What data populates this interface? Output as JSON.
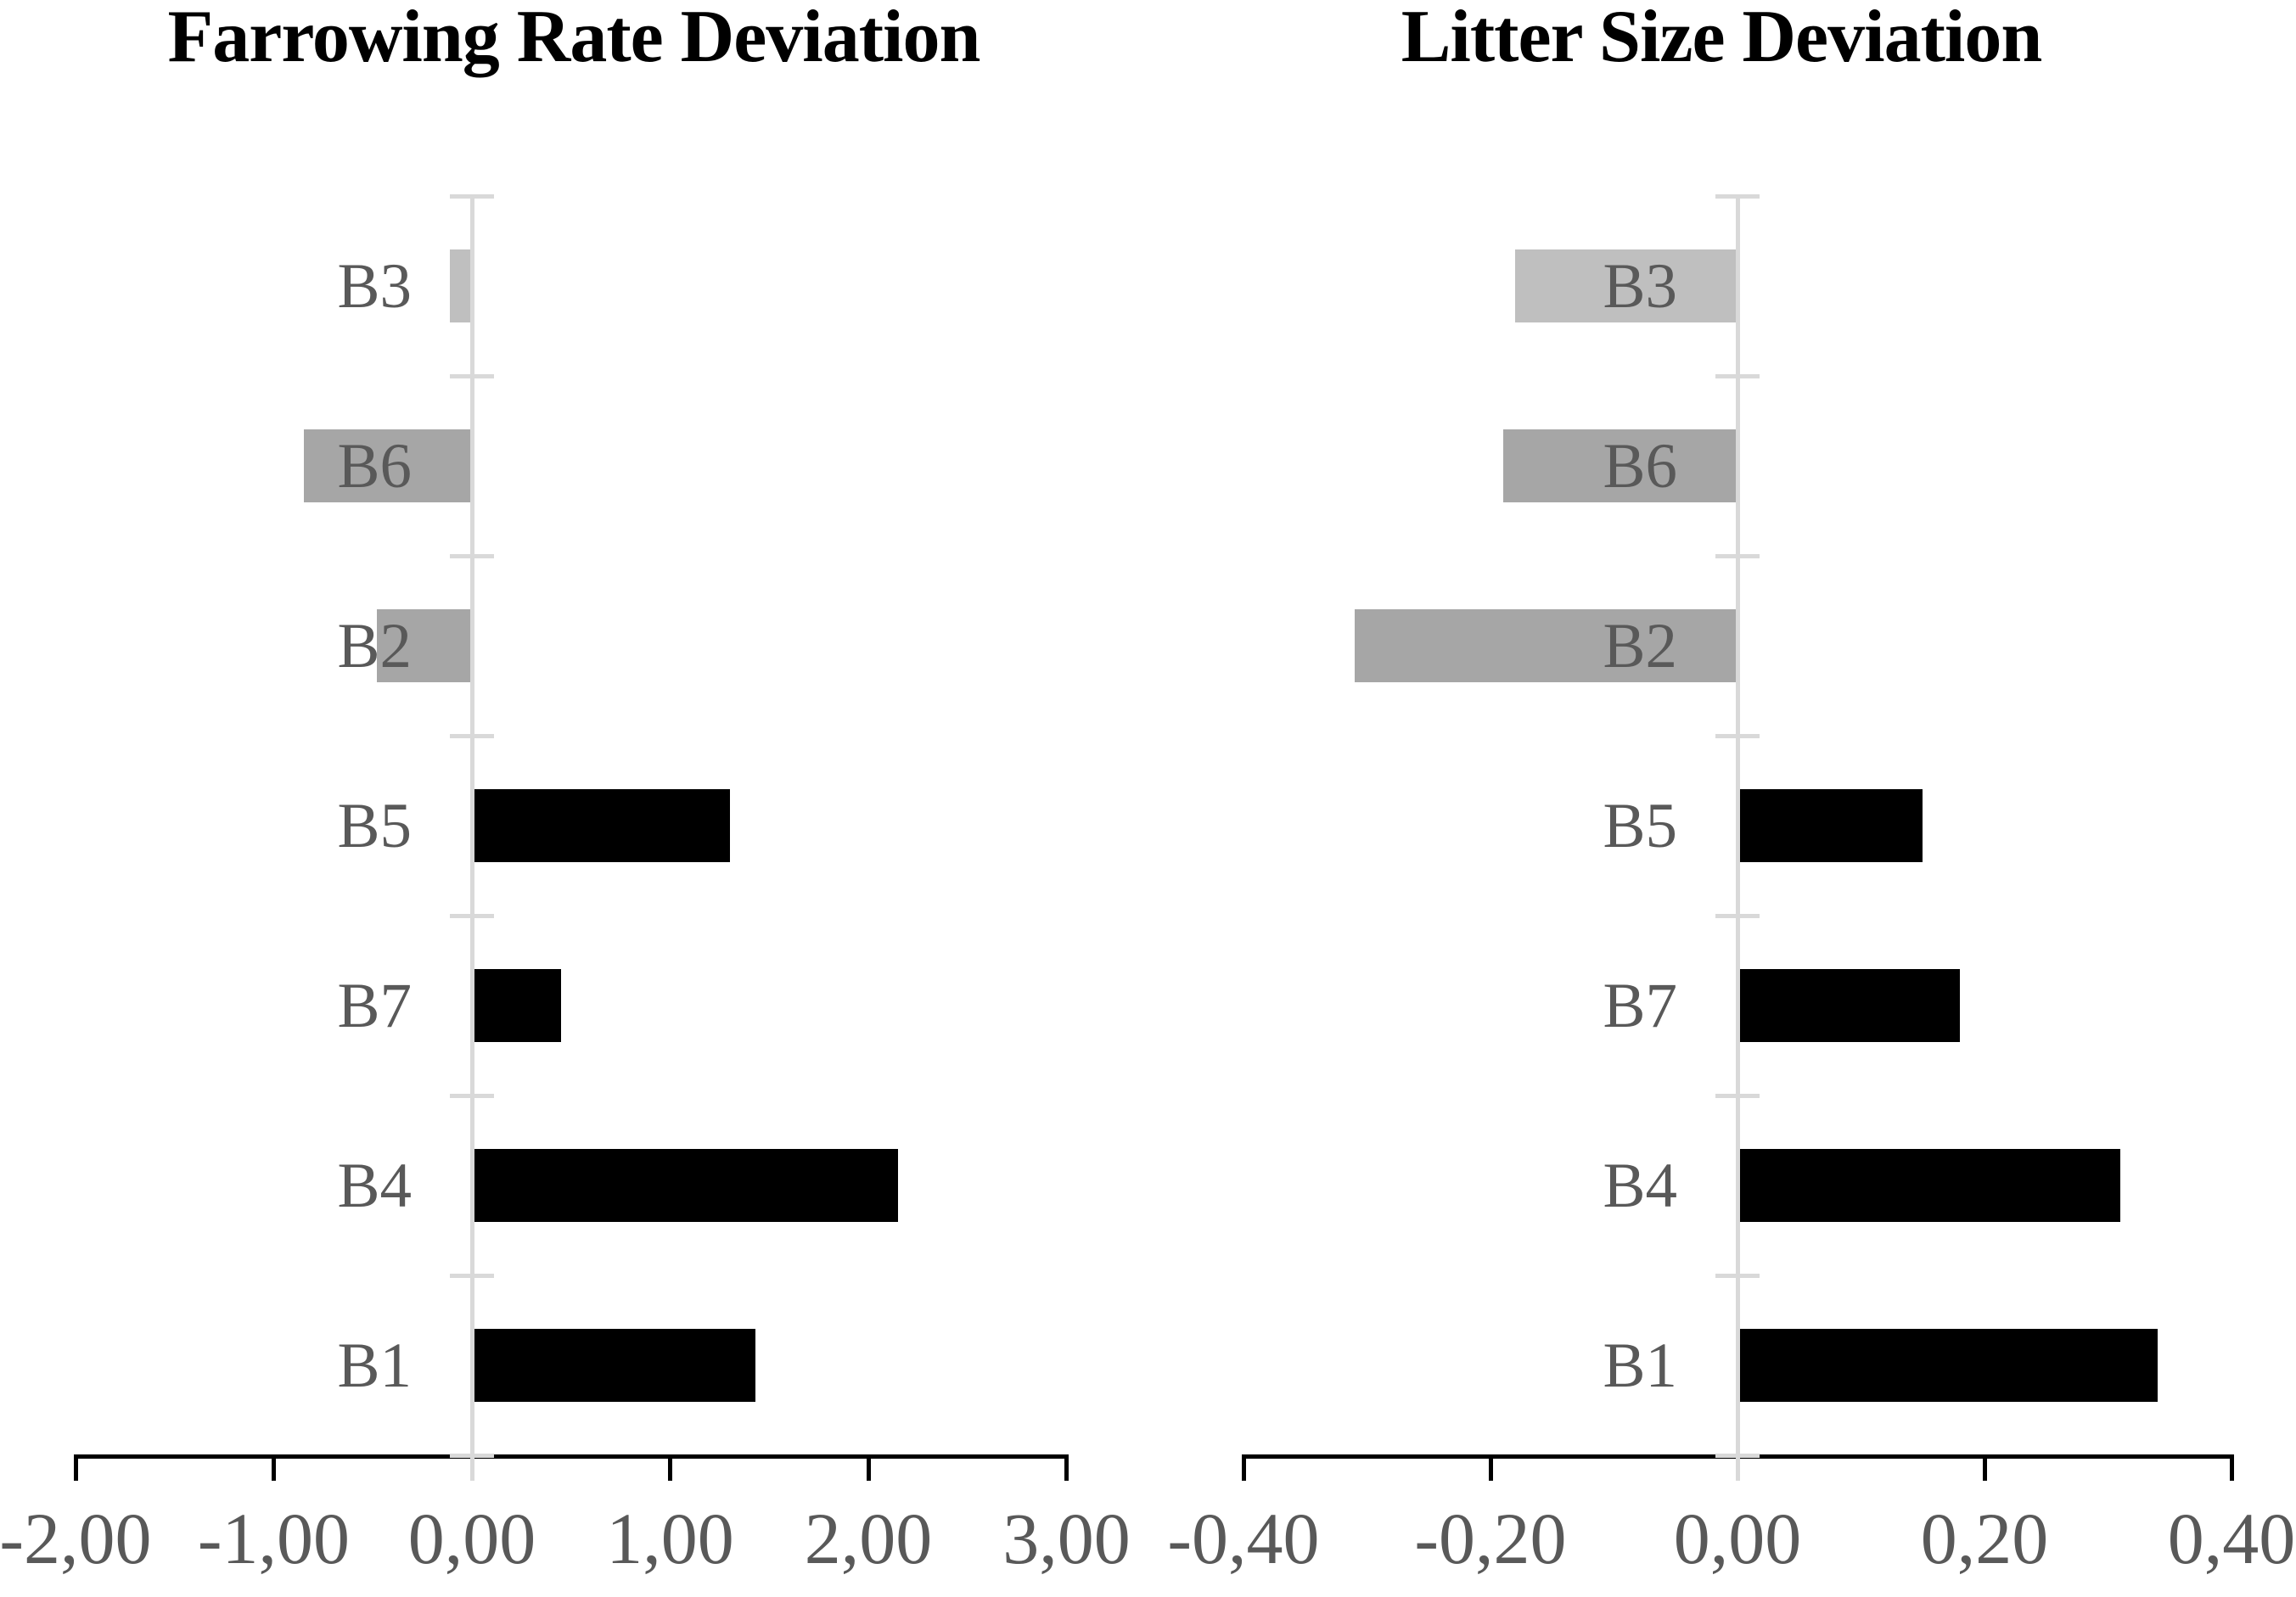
{
  "figure": {
    "background": "#ffffff",
    "axis_line_color": "#d9d9d9",
    "baseline_color": "#000000",
    "label_color": "#595959",
    "title_color": "#000000"
  },
  "chart_data": [
    {
      "type": "bar",
      "orientation": "horizontal",
      "title": "Farrowing Rate Deviation",
      "categories_top_to_bottom": [
        "B3",
        "B6",
        "B2",
        "B5",
        "B7",
        "B4",
        "B1"
      ],
      "values": [
        -0.11,
        -0.85,
        -0.48,
        1.3,
        0.45,
        2.15,
        1.43
      ],
      "bar_colors": [
        "#bfbfbf",
        "#a6a6a6",
        "#a6a6a6",
        "#000000",
        "#000000",
        "#000000",
        "#000000"
      ],
      "xlim": [
        -2.0,
        3.0
      ],
      "xticks": [
        -2,
        -1,
        0,
        1,
        2,
        3
      ],
      "xtick_labels": [
        "-2,00",
        "-1,00",
        "0,00",
        "1,00",
        "2,00",
        "3,00"
      ],
      "decimal_style": "comma",
      "grid": false,
      "legend": "none",
      "value_axis_side": "bottom",
      "category_labels_position": "left-of-zero-line"
    },
    {
      "type": "bar",
      "orientation": "horizontal",
      "title": "Litter Size Deviation",
      "categories_top_to_bottom": [
        "B3",
        "B6",
        "B2",
        "B5",
        "B7",
        "B4",
        "B1"
      ],
      "values": [
        -0.18,
        -0.19,
        -0.31,
        0.15,
        0.18,
        0.31,
        0.34
      ],
      "bar_colors": [
        "#bfbfbf",
        "#a6a6a6",
        "#a6a6a6",
        "#000000",
        "#000000",
        "#000000",
        "#000000"
      ],
      "xlim": [
        -0.4,
        0.4
      ],
      "xticks": [
        -0.4,
        -0.2,
        0,
        0.2,
        0.4
      ],
      "xtick_labels": [
        "-0,40",
        "-0,20",
        "0,00",
        "0,20",
        "0,40"
      ],
      "decimal_style": "comma",
      "grid": false,
      "legend": "none",
      "value_axis_side": "bottom",
      "category_labels_position": "left-of-zero-line"
    }
  ]
}
